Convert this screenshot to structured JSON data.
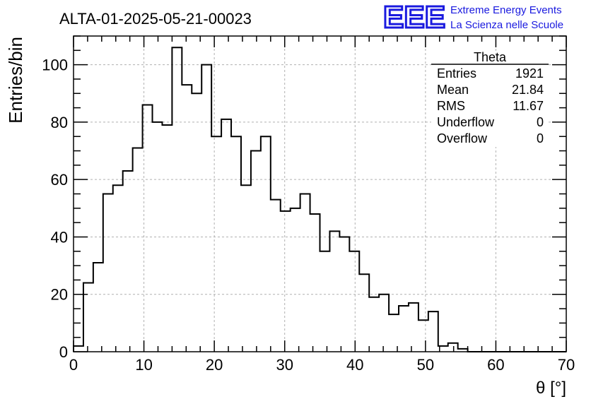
{
  "header": {
    "run_title": "ALTA-01-2025-05-21-00023",
    "logo_text": "EEE",
    "logo_line1": "Extreme Energy Events",
    "logo_line2": "La Scienza nelle Scuole",
    "logo_color": "#1a1adf"
  },
  "stats_box": {
    "title": "Theta",
    "rows": [
      {
        "label": "Entries",
        "value": "1921"
      },
      {
        "label": "Mean",
        "value": "21.84"
      },
      {
        "label": "RMS",
        "value": "11.67"
      },
      {
        "label": "Underflow",
        "value": "0"
      },
      {
        "label": "Overflow",
        "value": "0"
      }
    ]
  },
  "chart_data": {
    "type": "histogram",
    "xlabel": "θ [°]",
    "ylabel": "Entries/bin",
    "xlim": [
      0,
      70
    ],
    "ylim": [
      0,
      110
    ],
    "grid": true,
    "bin_width": 1.4,
    "bin_edges_start": 0,
    "values": [
      2,
      24,
      31,
      55,
      58,
      63,
      71,
      86,
      80,
      79,
      106,
      93,
      90,
      100,
      75,
      81,
      75,
      58,
      70,
      75,
      53,
      49,
      50,
      55,
      48,
      35,
      42,
      40,
      35,
      27,
      19,
      20,
      13,
      16,
      17,
      11,
      14,
      2,
      3,
      1,
      0,
      0,
      0,
      0,
      0,
      0,
      0,
      0,
      0,
      0
    ],
    "x_ticks": [
      "0",
      "10",
      "20",
      "30",
      "40",
      "50",
      "60",
      "70"
    ],
    "y_ticks": [
      "0",
      "20",
      "40",
      "60",
      "80",
      "100"
    ],
    "line_color": "#000000",
    "grid_color": "#b0b0b0"
  }
}
